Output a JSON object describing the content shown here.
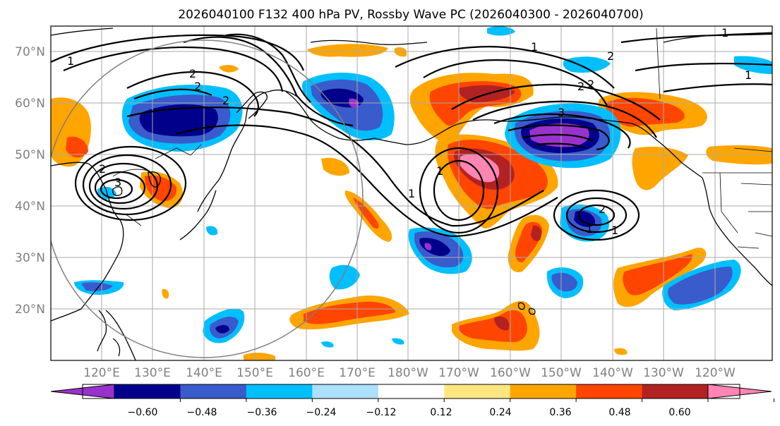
{
  "title": "2026040100 F132 400 hPa PV, Rossby Wave PC (2026040300 - 2026040700)",
  "lat_labels": [
    "70°N",
    "60°N",
    "50°N",
    "40°N",
    "30°N",
    "20°N"
  ],
  "lon_labels": [
    "120°E",
    "130°E",
    "140°E",
    "150°E",
    "160°E",
    "170°E",
    "180°W",
    "170°W",
    "160°W",
    "150°W",
    "140°W",
    "130°W",
    "120°W"
  ],
  "colorbar": {
    "colors": [
      "#9932CC",
      "#00008B",
      "#3A5BCC",
      "#00BFFF",
      "#ADDFFF",
      "#FFFFFF",
      "#FFE680",
      "#FFA500",
      "#FF4500",
      "#B22222",
      "#FF85B3"
    ],
    "tick_labels": [
      "−0.60",
      "−0.48",
      "−0.36",
      "−0.24",
      "−0.12",
      "0.12",
      "0.24",
      "0.36",
      "0.48",
      "0.60"
    ]
  },
  "contour_labels": [
    "1",
    "2",
    "2",
    "2",
    "1",
    "2",
    "2",
    "2",
    "3",
    "1",
    "1",
    "2",
    "1",
    "1",
    "2",
    "3",
    "1",
    "1"
  ]
}
